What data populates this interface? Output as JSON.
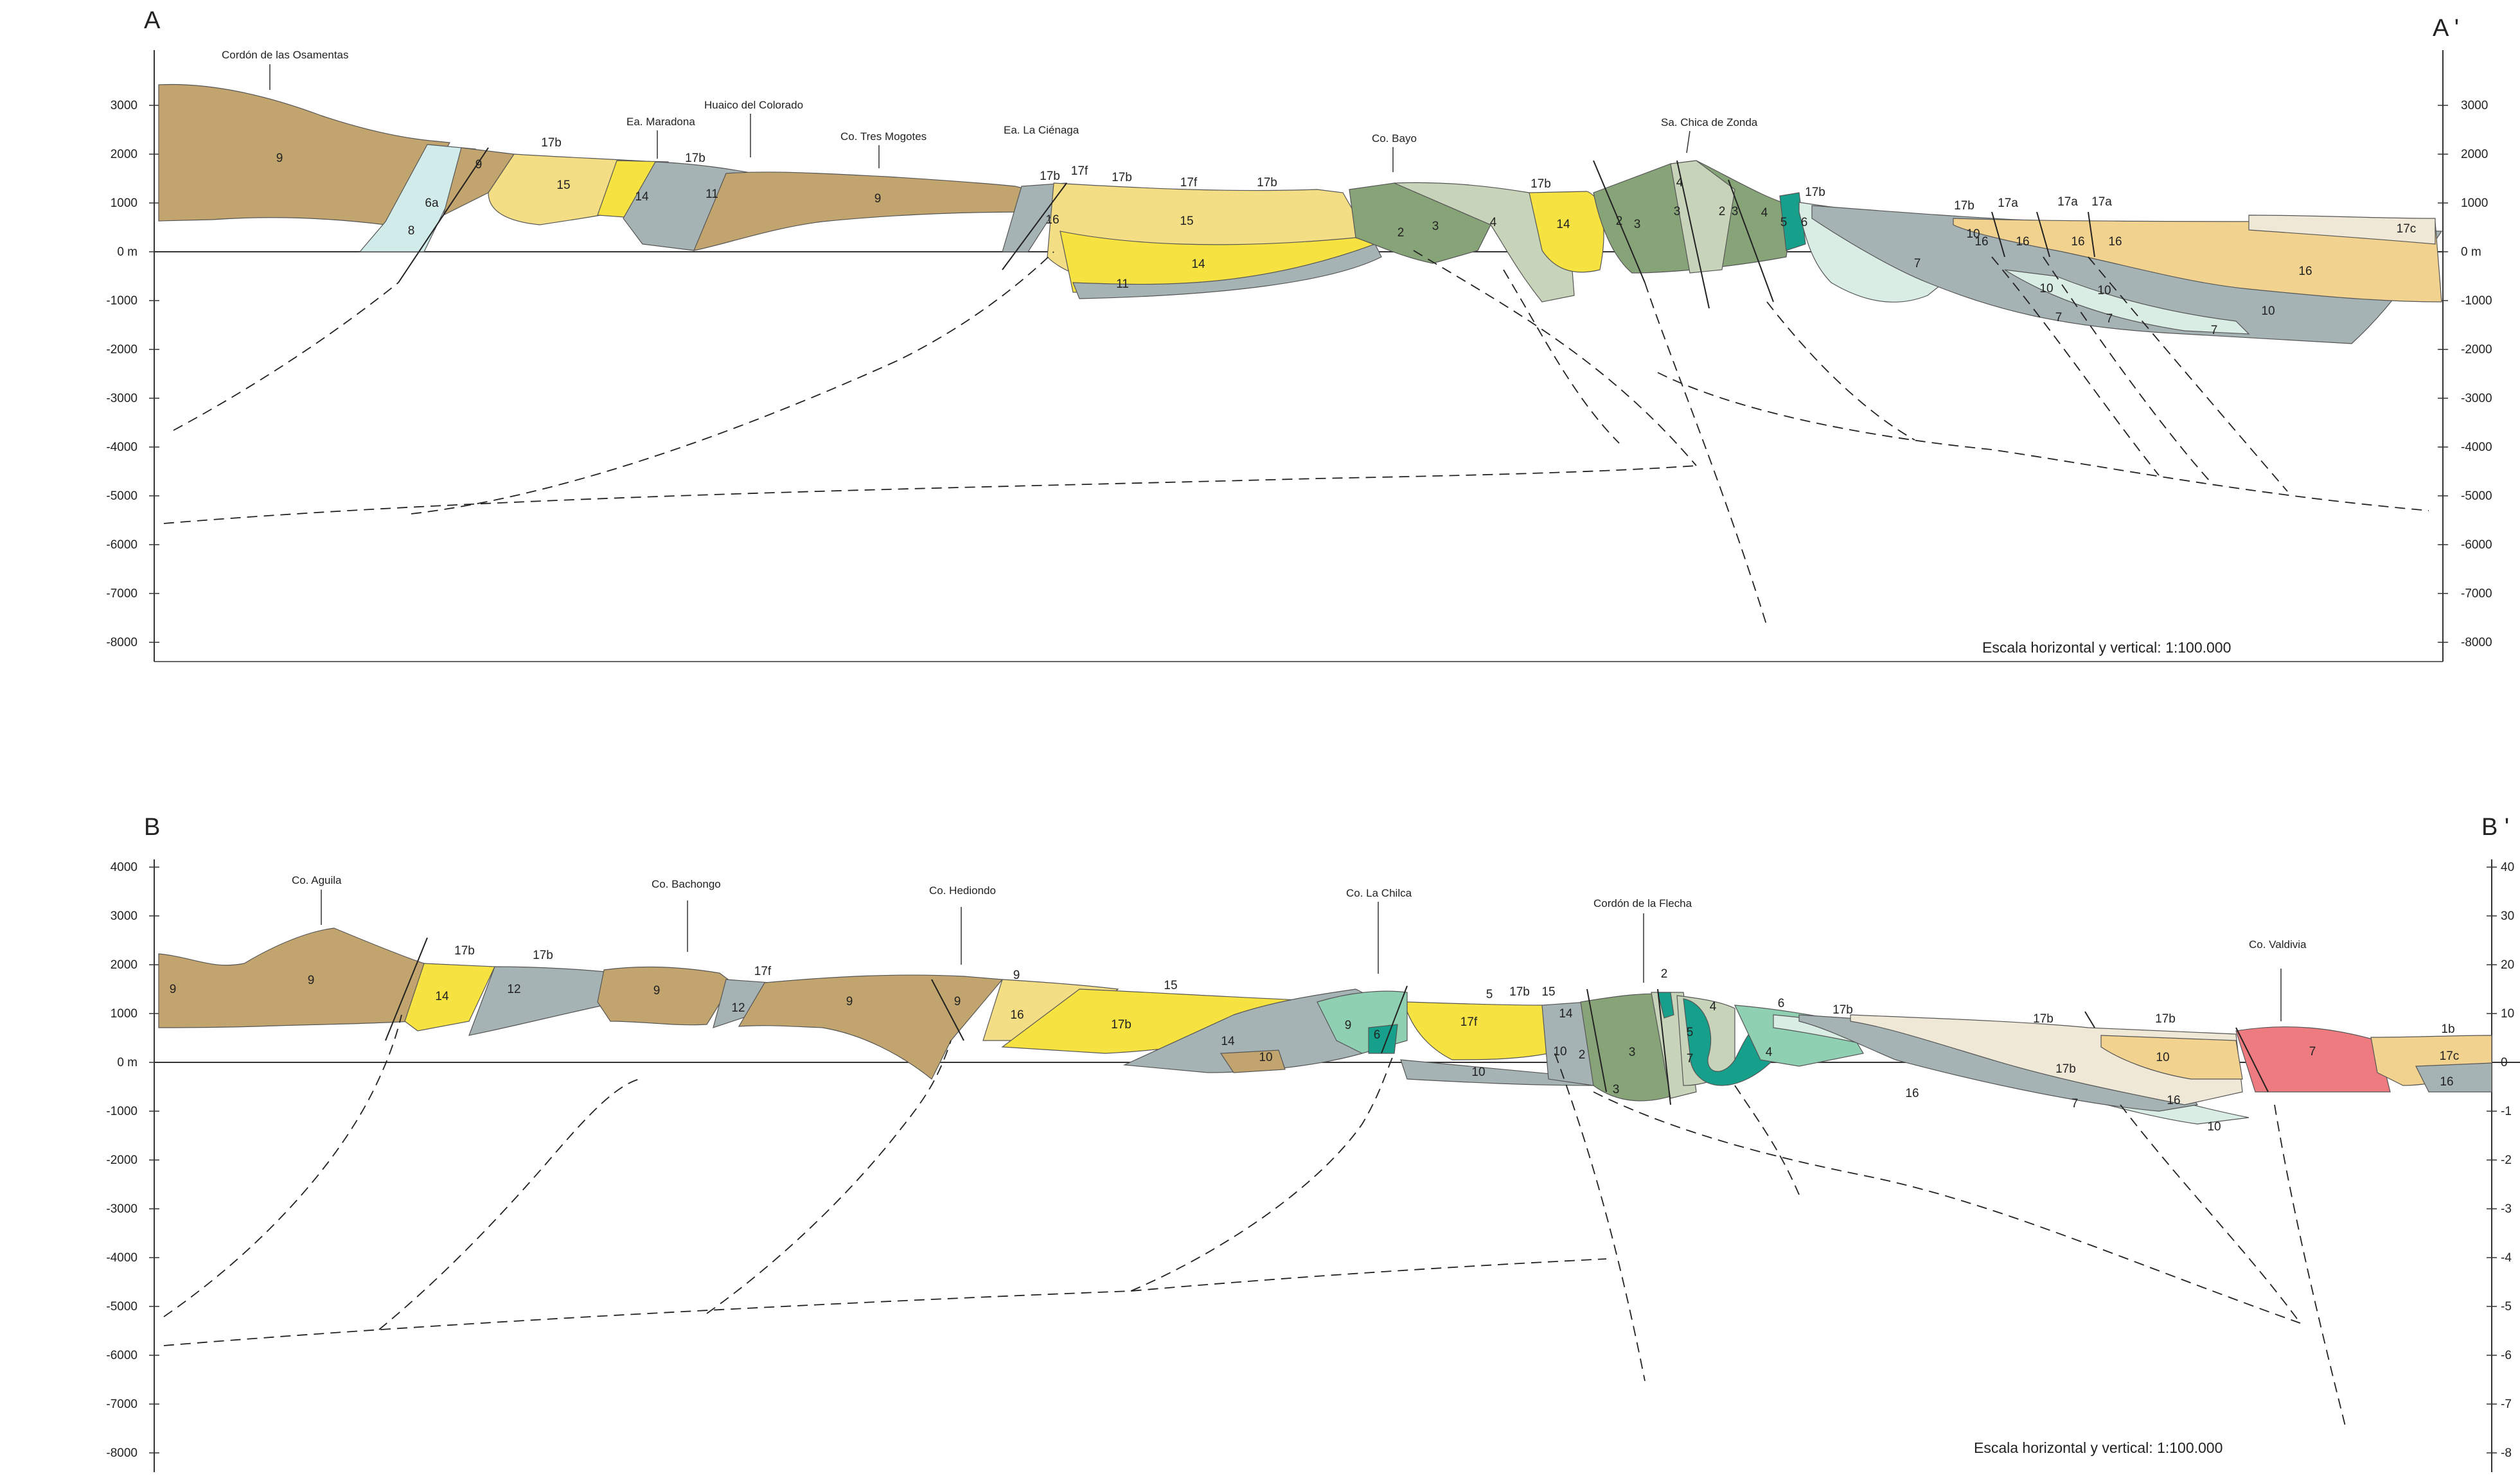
{
  "sections": [
    {
      "start_label": "A",
      "end_label": "A '",
      "scale_note": "Escala horizontal y vertical: 1:100.000",
      "right_ticks": true,
      "tick_labels": [
        "3000",
        "2000",
        "1000",
        "0 m",
        "-1000",
        "-2000",
        "-3000",
        "-4000",
        "-5000",
        "-6000",
        "-7000",
        "-8000"
      ],
      "place_names": [
        "Cordón de las Osamentas",
        "Ea. Maradona",
        "Huaico del Colorado",
        "Co. Tres Mogotes",
        "Ea. La Ciénaga",
        "Co. Bayo",
        "Sa. Chica de Zonda"
      ],
      "unit_labels": [
        "9",
        "6a",
        "8",
        "9",
        "17b",
        "15",
        "14",
        "17b",
        "11",
        "9",
        "17b",
        "17f",
        "16",
        "17b",
        "17f",
        "17b",
        "15",
        "14",
        "11",
        "2",
        "3",
        "4",
        "17b",
        "14",
        "2",
        "3",
        "3",
        "4",
        "2",
        "3",
        "4",
        "5",
        "6",
        "17b",
        "17b",
        "17a",
        "17a",
        "17a",
        "10",
        "16",
        "16",
        "16",
        "16",
        "17c",
        "7",
        "16",
        "10",
        "10",
        "10",
        "7",
        "7",
        "7"
      ]
    },
    {
      "start_label": "B",
      "end_label": "B '",
      "scale_note": "Escala horizontal y vertical: 1:100.000",
      "right_ticks": false,
      "tick_labels": [
        "4000",
        "3000",
        "2000",
        "1000",
        "0 m",
        "-1000",
        "-2000",
        "-3000",
        "-4000",
        "-5000",
        "-6000",
        "-7000",
        "-8000"
      ],
      "right_tick_labels_partial": [
        "40",
        "30",
        "20",
        "10",
        "0",
        "-1",
        "-2",
        "-3",
        "-4",
        "-5",
        "-6",
        "-7",
        "-8"
      ],
      "place_names": [
        "Co. Aguila",
        "Co. Bachongo",
        "Co. Hediondo",
        "Co. La Chilca",
        "Cordón de la Flecha",
        "Co. Valdivia"
      ],
      "unit_labels": [
        "9",
        "9",
        "9",
        "17b",
        "17b",
        "14",
        "12",
        "9",
        "17f",
        "12",
        "9",
        "9",
        "16",
        "15",
        "17b",
        "14",
        "10",
        "9",
        "6",
        "5",
        "17b",
        "15",
        "17f",
        "14",
        "10",
        "10",
        "2",
        "3",
        "3",
        "2",
        "5",
        "4",
        "7",
        "4",
        "6",
        "17b",
        "17b",
        "17b",
        "17b",
        "16",
        "7",
        "10",
        "16",
        "10",
        "7",
        "1b",
        "17c",
        "16",
        "10"
      ]
    }
  ],
  "colors": {
    "unit_9_brown": "#c2a56e",
    "unit_14_yellow": "#f6e342",
    "unit_15_light_yellow": "#f4de85",
    "unit_16_tan": "#f2d28f",
    "unit_17_cream": "#f0e8d6",
    "unit_10_11_grey": "#a6b3b5",
    "unit_2_3_green": "#87a378",
    "unit_4_pale_green": "#c8d4ba",
    "unit_5_6_teal": "#16a08c",
    "unit_6_mint": "#8fd0b2",
    "unit_7_pale_mint": "#d9ede5",
    "unit_8_pale_blue": "#d0ebea",
    "unit_1b_red": "#ee7b80"
  }
}
